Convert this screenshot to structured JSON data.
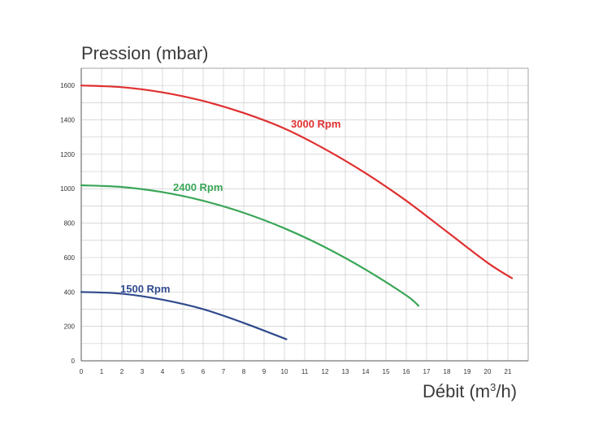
{
  "chart_data": {
    "type": "line",
    "title": "",
    "ylabel": "Pression (mbar)",
    "xlabel_main": "Débit (m",
    "xlabel_sup": "3",
    "xlabel_end": "/h)",
    "xlim": [
      0,
      22
    ],
    "ylim": [
      0,
      1700
    ],
    "x_ticks": [
      "0",
      "1",
      "2",
      "3",
      "4",
      "5",
      "6",
      "7",
      "8",
      "9",
      "10",
      "11",
      "12",
      "13",
      "14",
      "15",
      "16",
      "17",
      "18",
      "19",
      "20",
      "21"
    ],
    "y_ticks": [
      "0",
      "200",
      "400",
      "600",
      "800",
      "1000",
      "1200",
      "1400",
      "1600"
    ],
    "grid": true,
    "series": [
      {
        "name": "3000 Rpm",
        "color": "#e03030",
        "x": [
          0,
          2,
          4,
          6,
          8,
          10,
          12,
          14,
          16,
          18,
          20,
          21.2
        ],
        "y": [
          1600,
          1590,
          1560,
          1510,
          1440,
          1350,
          1230,
          1090,
          930,
          750,
          570,
          480
        ]
      },
      {
        "name": "2400 Rpm",
        "color": "#3aa657",
        "x": [
          0,
          2,
          4,
          6,
          8,
          10,
          12,
          14,
          16,
          16.6
        ],
        "y": [
          1020,
          1010,
          980,
          930,
          860,
          770,
          660,
          530,
          380,
          320
        ]
      },
      {
        "name": "1500 Rpm",
        "color": "#2f4a8c",
        "x": [
          0,
          2,
          4,
          6,
          8,
          10.1
        ],
        "y": [
          400,
          390,
          355,
          300,
          220,
          125
        ]
      }
    ]
  }
}
